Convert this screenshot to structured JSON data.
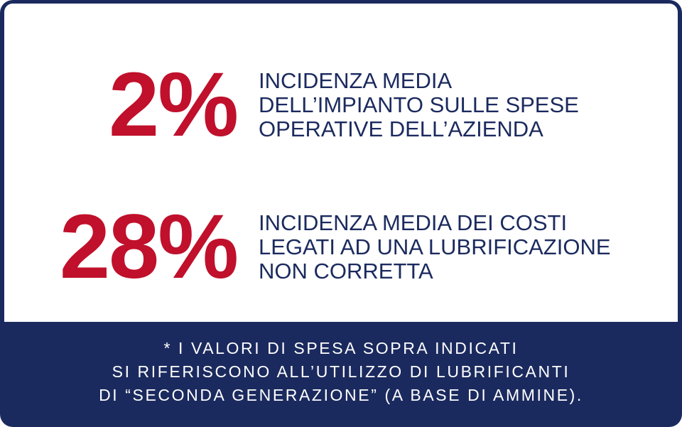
{
  "colors": {
    "accent_red": "#c0102b",
    "navy": "#1b2a5e",
    "background": "#ffffff"
  },
  "stats": [
    {
      "value": "2%",
      "lines": [
        "INCIDENZA MEDIA",
        "DELL’IMPIANTO SULLE SPESE",
        "OPERATIVE DELL’AZIENDA"
      ]
    },
    {
      "value": "28%",
      "lines": [
        "INCIDENZA MEDIA DEI COSTI",
        "LEGATI AD UNA LUBRIFICAZIONE",
        "NON CORRETTA"
      ]
    }
  ],
  "footnote": {
    "lines": [
      "* I VALORI DI SPESA SOPRA INDICATI",
      "SI RIFERISCONO ALL’UTILIZZO DI LUBRIFICANTI",
      "DI “SECONDA GENERAZIONE” (A BASE DI AMMINE)."
    ]
  }
}
